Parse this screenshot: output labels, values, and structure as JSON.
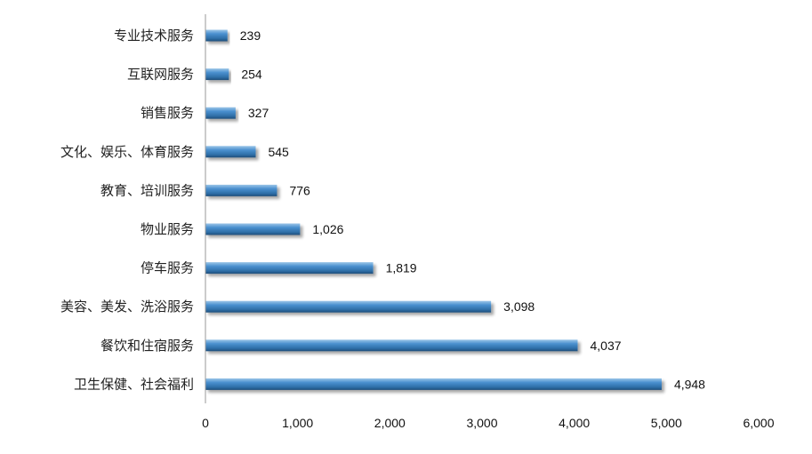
{
  "chart_data": {
    "type": "bar",
    "orientation": "horizontal",
    "categories": [
      "专业技术服务",
      "互联网服务",
      "销售服务",
      "文化、娱乐、体育服务",
      "教育、培训服务",
      "物业服务",
      "停车服务",
      "美容、美发、洗浴服务",
      "餐饮和住宿服务",
      "卫生保健、社会福利"
    ],
    "values": [
      239,
      254,
      327,
      545,
      776,
      1026,
      1819,
      3098,
      4037,
      4948
    ],
    "value_labels": [
      "239",
      "254",
      "327",
      "545",
      "776",
      "1,026",
      "1,819",
      "3,098",
      "4,037",
      "4,948"
    ],
    "xlim": [
      0,
      6000
    ],
    "x_ticks": [
      0,
      1000,
      2000,
      3000,
      4000,
      5000,
      6000
    ],
    "x_tick_labels": [
      "0",
      "1,000",
      "2,000",
      "3,000",
      "4,000",
      "5,000",
      "6,000"
    ],
    "grid": false,
    "legend": "none",
    "bar_color": "#3a7fbf"
  }
}
